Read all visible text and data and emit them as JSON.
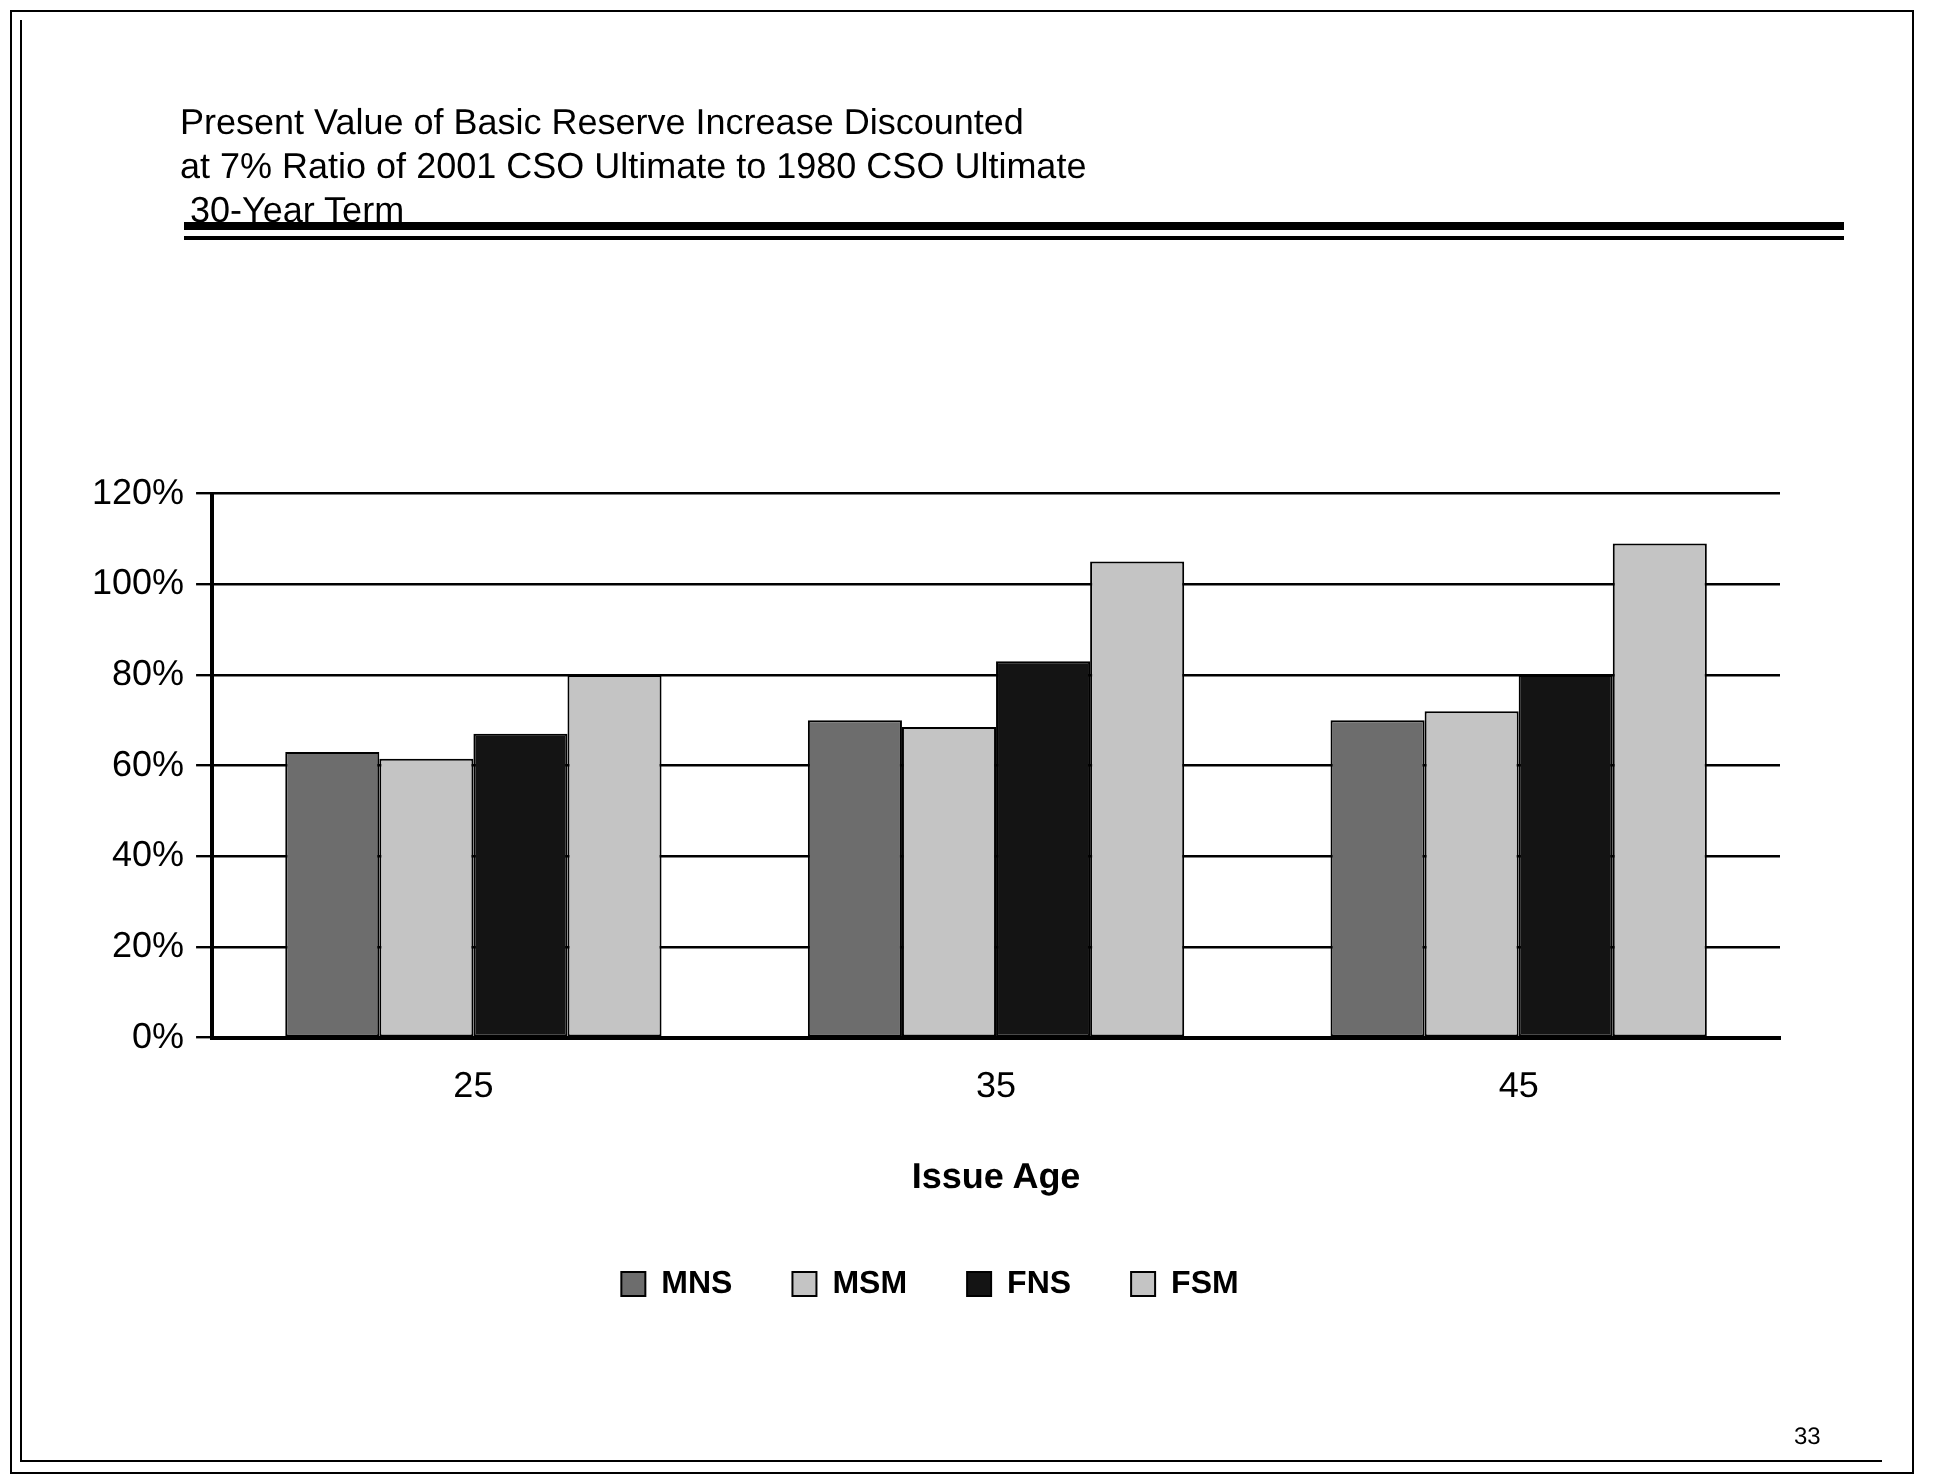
{
  "chart_data": {
    "type": "bar",
    "title": "Present Value of Basic Reserve Increase Discounted\nat 7% Ratio of 2001 CSO Ultimate to 1980 CSO Ultimate\n 30-Year Term",
    "xlabel": "Issue Age",
    "categories": [
      "25",
      "35",
      "45"
    ],
    "series": [
      {
        "name": "MNS",
        "color": "#6d6d6d",
        "values": [
          63,
          70,
          70
        ]
      },
      {
        "name": "MSM",
        "color": "#c4c4c4",
        "values": [
          61.5,
          68.5,
          72
        ]
      },
      {
        "name": "FNS",
        "color": "#141414",
        "values": [
          67,
          83,
          80
        ]
      },
      {
        "name": "FSM",
        "color": "#c4c4c4",
        "values": [
          80,
          105,
          109
        ]
      }
    ],
    "ylim": [
      0,
      120
    ],
    "yticks": [
      {
        "value": 0,
        "label": "0%"
      },
      {
        "value": 20,
        "label": "20%"
      },
      {
        "value": 40,
        "label": "40%"
      },
      {
        "value": 60,
        "label": "60%"
      },
      {
        "value": 80,
        "label": "80%"
      },
      {
        "value": 100,
        "label": "100%"
      },
      {
        "value": 120,
        "label": "120%"
      }
    ],
    "grid": "y",
    "legend": "bottom",
    "annotations": [
      "33"
    ]
  }
}
